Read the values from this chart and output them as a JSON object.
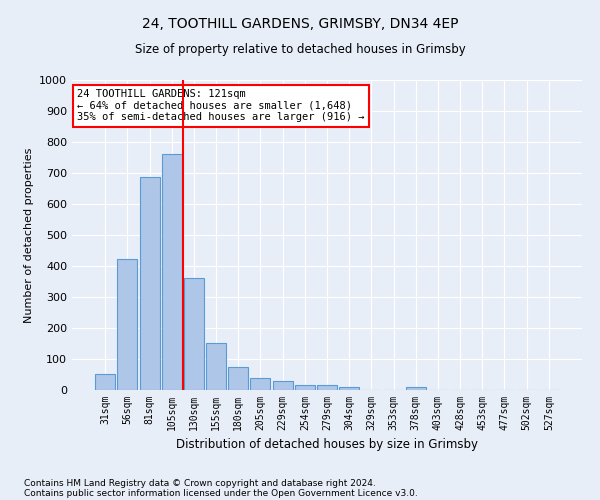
{
  "title1": "24, TOOTHILL GARDENS, GRIMSBY, DN34 4EP",
  "title2": "Size of property relative to detached houses in Grimsby",
  "xlabel": "Distribution of detached houses by size in Grimsby",
  "ylabel": "Number of detached properties",
  "footnote1": "Contains HM Land Registry data © Crown copyright and database right 2024.",
  "footnote2": "Contains public sector information licensed under the Open Government Licence v3.0.",
  "bar_labels": [
    "31sqm",
    "56sqm",
    "81sqm",
    "105sqm",
    "130sqm",
    "155sqm",
    "180sqm",
    "205sqm",
    "229sqm",
    "254sqm",
    "279sqm",
    "304sqm",
    "329sqm",
    "353sqm",
    "378sqm",
    "403sqm",
    "428sqm",
    "453sqm",
    "477sqm",
    "502sqm",
    "527sqm"
  ],
  "bar_values": [
    52,
    422,
    686,
    760,
    362,
    153,
    75,
    40,
    28,
    17,
    17,
    10,
    0,
    0,
    10,
    0,
    0,
    0,
    0,
    0,
    0
  ],
  "bar_color": "#aec6e8",
  "bar_edge_color": "#5b9bd5",
  "ylim": [
    0,
    1000
  ],
  "yticks": [
    0,
    100,
    200,
    300,
    400,
    500,
    600,
    700,
    800,
    900,
    1000
  ],
  "vline_color": "red",
  "annotation_text": "24 TOOTHILL GARDENS: 121sqm\n← 64% of detached houses are smaller (1,648)\n35% of semi-detached houses are larger (916) →",
  "annotation_box_color": "white",
  "annotation_box_edge": "red",
  "bg_color": "#e8eef8"
}
